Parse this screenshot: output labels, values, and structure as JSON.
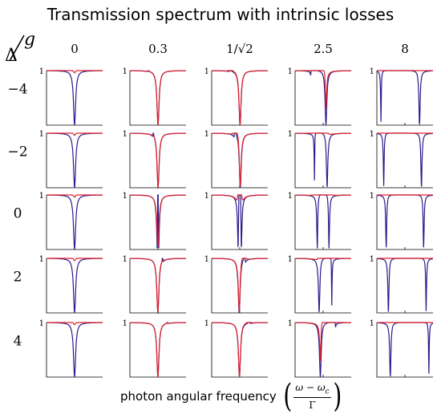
{
  "title": "Transmission spectrum with intrinsic losses",
  "corner": {
    "row_symbol": "Δ",
    "col_symbol": "g"
  },
  "col_labels": [
    "0",
    "0.3",
    "1/√2",
    "2.5",
    "8"
  ],
  "row_labels": [
    "−4",
    "−2",
    "0",
    "2",
    "4"
  ],
  "x_axis_label": {
    "text": "photon angular frequency",
    "numerator": "ω − ω",
    "numerator_sub": "c",
    "denominator": "Γ"
  },
  "panel_ytick": "1",
  "colors": {
    "lossless": "#2b1a8c",
    "lossy": "#e0202a"
  },
  "chart_data": {
    "type": "line",
    "description_units": "transmission vs normalized detuning",
    "x_range": [
      -12,
      12
    ],
    "y_range": [
      0,
      1
    ],
    "grid_rows_delta": [
      -4,
      -2,
      0,
      2,
      4
    ],
    "grid_cols_g": [
      0,
      0.3,
      0.7071,
      2.5,
      8
    ],
    "series": [
      {
        "name": "",
        "color": "#2b1a8c",
        "kappa": 0.0
      },
      {
        "name": "",
        "color": "#e0202a",
        "kappa": 0.9
      }
    ]
  }
}
